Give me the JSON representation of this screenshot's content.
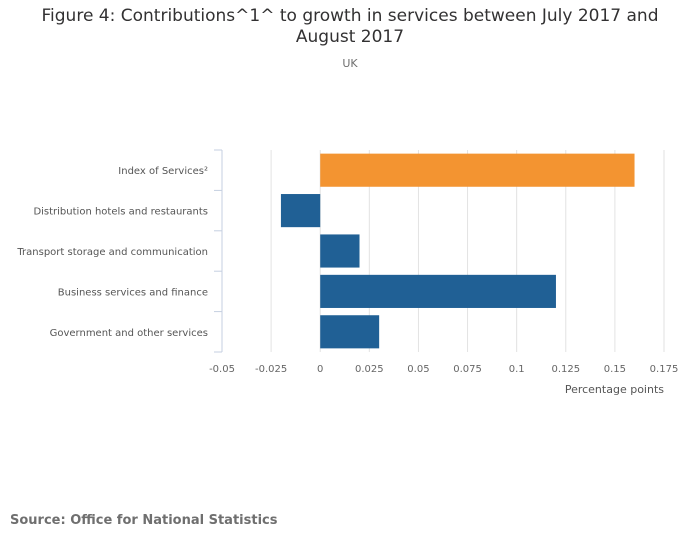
{
  "chart_data": {
    "type": "bar",
    "orientation": "horizontal",
    "title": "Figure 4: Contributions^1^ to growth in services between July 2017 and August 2017",
    "title_lines": [
      "Figure 4: Contributions^1^ to growth in services between July 2017 and",
      "August 2017"
    ],
    "subtitle": "UK",
    "categories": [
      "Index of Services²",
      "Distribution hotels and restaurants",
      "Transport storage and communication",
      "Business services and finance",
      "Government and other services"
    ],
    "values": [
      0.16,
      -0.02,
      0.02,
      0.12,
      0.03
    ],
    "colors": [
      "#f39431",
      "#206095",
      "#206095",
      "#206095",
      "#206095"
    ],
    "xlabel": "Percentage points",
    "ylabel": "",
    "xlim": [
      -0.05,
      0.175
    ],
    "xticks": [
      -0.05,
      -0.025,
      0,
      0.025,
      0.05,
      0.075,
      0.1,
      0.125,
      0.15,
      0.175
    ],
    "xtick_labels": [
      "-0.05",
      "-0.025",
      "0",
      "0.025",
      "0.05",
      "0.075",
      "0.1",
      "0.125",
      "0.15",
      "0.175"
    ],
    "grid": true,
    "legend": "none"
  },
  "source": "Source: Office for National Statistics"
}
